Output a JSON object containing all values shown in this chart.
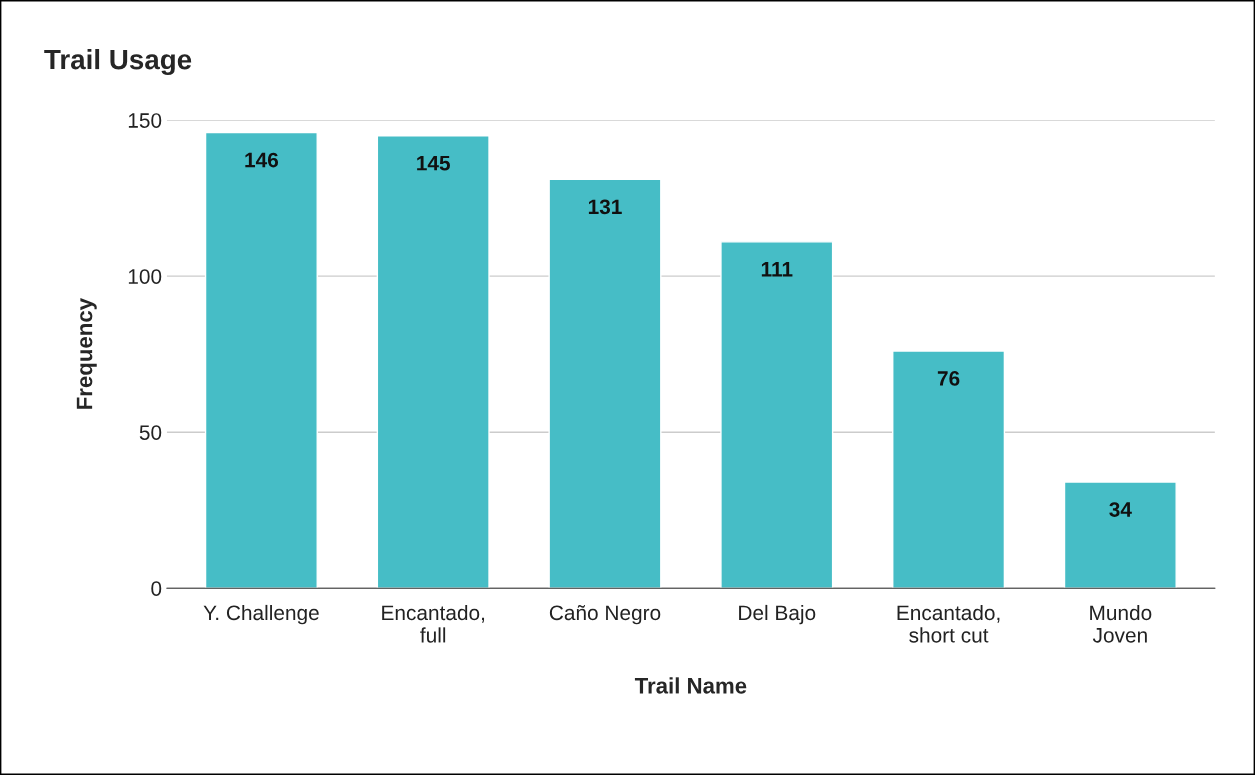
{
  "chart_data": {
    "type": "bar",
    "title": "Trail Usage",
    "xlabel": "Trail Name",
    "ylabel": "Frequency",
    "categories": [
      "Y. Challenge",
      "Encantado,\nfull",
      "Caño Negro",
      "Del Bajo",
      "Encantado,\nshort cut",
      "Mundo\nJoven"
    ],
    "values": [
      146,
      145,
      131,
      111,
      76,
      34
    ],
    "color": "#46bdc6",
    "ylim": [
      0,
      150
    ],
    "yticks": [
      0,
      50,
      100,
      150
    ],
    "grid": "y",
    "data_labels": true
  }
}
